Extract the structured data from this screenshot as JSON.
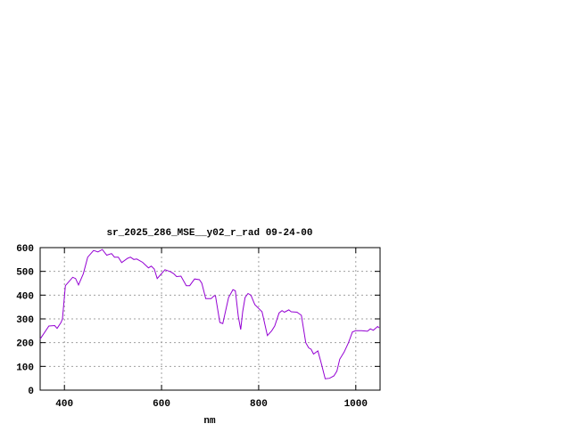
{
  "chart_data": {
    "type": "line",
    "title": "sr_2025_286_MSE__y02_r_rad 09-24-00",
    "xlabel": "nm",
    "ylabel": "",
    "xlim": [
      350,
      1050
    ],
    "ylim": [
      0,
      600
    ],
    "xticks": [
      400,
      600,
      800,
      1000
    ],
    "yticks": [
      0,
      100,
      200,
      300,
      400,
      500,
      600
    ],
    "grid": true,
    "line_color": "#9400d3",
    "series": [
      {
        "x": [
          350,
          368,
          380,
          385,
          393,
          396,
          402,
          417,
          423,
          429,
          439,
          448,
          460,
          469,
          478,
          487,
          497,
          503,
          511,
          518,
          530,
          536,
          543,
          549,
          561,
          573,
          579,
          585,
          591,
          607,
          619,
          625,
          631,
          640,
          651,
          658,
          668,
          678,
          683,
          691,
          702,
          708,
          711,
          720,
          726,
          738,
          747,
          752,
          758,
          763,
          767,
          772,
          778,
          784,
          792,
          802,
          807,
          818,
          827,
          833,
          842,
          848,
          853,
          862,
          867,
          879,
          888,
          897,
          903,
          908,
          913,
          922,
          928,
          937,
          946,
          955,
          961,
          967,
          976,
          985,
          993,
          1000,
          1012,
          1024,
          1030,
          1036,
          1045,
          1048
        ],
        "y": [
          215,
          270,
          272,
          260,
          285,
          300,
          440,
          475,
          470,
          443,
          490,
          560,
          588,
          582,
          592,
          568,
          575,
          560,
          560,
          537,
          555,
          560,
          550,
          552,
          538,
          515,
          522,
          510,
          470,
          507,
          498,
          490,
          478,
          480,
          440,
          440,
          468,
          465,
          450,
          385,
          385,
          397,
          397,
          285,
          280,
          390,
          423,
          418,
          310,
          255,
          330,
          390,
          407,
          400,
          360,
          340,
          330,
          230,
          250,
          270,
          325,
          335,
          328,
          338,
          330,
          328,
          315,
          200,
          178,
          172,
          152,
          165,
          120,
          48,
          50,
          60,
          80,
          130,
          160,
          200,
          245,
          250,
          250,
          248,
          258,
          252,
          268,
          262
        ]
      }
    ]
  }
}
